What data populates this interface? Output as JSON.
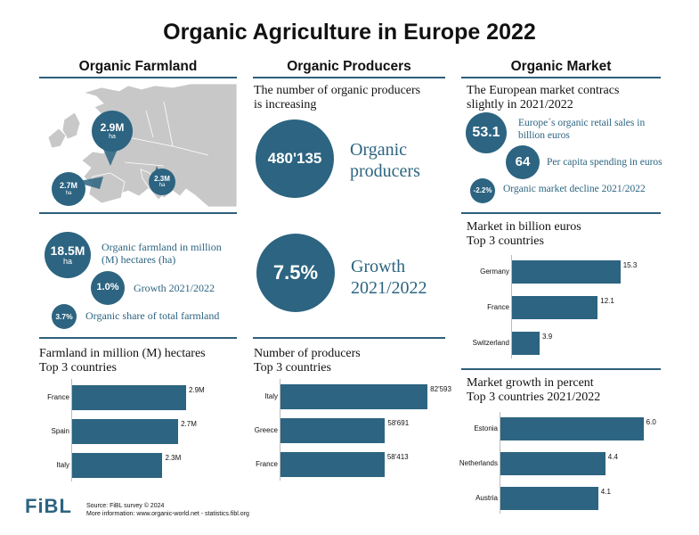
{
  "title": "Organic Agriculture in Europe 2022",
  "columns": [
    "Organic Farmland",
    "Organic Producers",
    "Organic Market"
  ],
  "farmland": {
    "map_bubbles": [
      {
        "value": "2.9M",
        "unit": "ha"
      },
      {
        "value": "2.7M",
        "unit": "ha"
      },
      {
        "value": "2.3M",
        "unit": "ha"
      }
    ],
    "stats": [
      {
        "value": "18.5M",
        "unit": "ha",
        "label": "Organic farmland in million (M) hectares (ha)"
      },
      {
        "value": "1.0%",
        "label": "Growth 2021/2022"
      },
      {
        "value": "3.7%",
        "label": "Organic share of total farmland"
      }
    ],
    "chart_title": [
      "Farmland in million (M) hectares",
      "Top 3 countries"
    ]
  },
  "producers": {
    "intro": [
      "The number of organic producers",
      "is increasing"
    ],
    "big1": {
      "value": "480'135",
      "label": [
        "Organic",
        "producers"
      ]
    },
    "big2": {
      "value": "7.5%",
      "label": [
        "Growth",
        "2021/2022"
      ]
    },
    "chart_title": [
      "Number of producers",
      "Top 3 countries"
    ]
  },
  "market": {
    "intro": [
      "The European market contracs",
      "slightly in 2021/2022"
    ],
    "stats": [
      {
        "value": "53.1",
        "label": [
          "Europe´s organic retail sales in",
          "billion euros"
        ]
      },
      {
        "value": "64",
        "label": [
          "Per capita spending in euros"
        ]
      },
      {
        "value": "-2.2%",
        "label": [
          "Organic market decline 2021/2022"
        ]
      }
    ],
    "chart1_title": [
      "Market in billion euros",
      "Top 3 countries"
    ],
    "chart2_title": [
      "Market growth in percent",
      "Top 3 countries 2021/2022"
    ]
  },
  "chart_data": [
    {
      "type": "bar",
      "title": "Farmland in million (M) hectares Top 3 countries",
      "categories": [
        "France",
        "Spain",
        "Italy"
      ],
      "values": [
        2.9,
        2.7,
        2.3
      ],
      "value_labels": [
        "2.9M",
        "2.7M",
        "2.3M"
      ],
      "xlim": [
        0,
        3.4
      ]
    },
    {
      "type": "bar",
      "title": "Number of producers Top 3 countries",
      "categories": [
        "Italy",
        "Greece",
        "France"
      ],
      "values": [
        82593,
        58691,
        58413
      ],
      "value_labels": [
        "82'593",
        "58'691",
        "58'413"
      ],
      "xlim": [
        0,
        84000
      ]
    },
    {
      "type": "bar",
      "title": "Market in billion euros Top 3 countries",
      "categories": [
        "Germany",
        "France",
        "Switzerland"
      ],
      "values": [
        15.3,
        12.1,
        3.9
      ],
      "value_labels": [
        "15.3",
        "12.1",
        "3.9"
      ],
      "xlim": [
        0,
        17.6
      ]
    },
    {
      "type": "bar",
      "title": "Market growth in percent Top 3 countries 2021/2022",
      "categories": [
        "Estonia",
        "Netherlands",
        "Austria"
      ],
      "values": [
        6.0,
        4.4,
        4.1
      ],
      "value_labels": [
        "6.0",
        "4.4",
        "4.1"
      ],
      "xlim": [
        0,
        6.2
      ]
    }
  ],
  "footer": {
    "logo": "FiBL",
    "source": "Source: FiBL survey © 2024",
    "more": "More information: www.organic-world.net - statistics.fibl.org"
  },
  "colors": {
    "accent": "#2c6481",
    "rule": "#2e5f7a",
    "map": "#c8c8c8"
  }
}
